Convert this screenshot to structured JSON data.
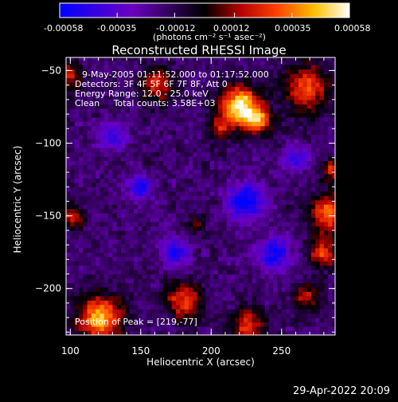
{
  "colorbar": {
    "tick_labels": [
      "-0.00058",
      "-0.00035",
      "-0.00012",
      "0.00012",
      "0.00035",
      "0.00058"
    ],
    "unit_label": "(photons cm⁻² s⁻¹ asec⁻²)"
  },
  "title": "Reconstructed RHESSI Image",
  "annotations": {
    "time_range": "9-May-2005 01:11:52.000 to 01:17:52.000",
    "detectors": "Detectors: 3F 4F 5F 6F 7F 8F, Att 0",
    "energy_range": "Energy Range: 12.0 - 25.0 keV",
    "method_counts": "Clean     Total counts: 3.58E+03",
    "peak_position": "Position of Peak = [219,-77]"
  },
  "footer_date": "29-Apr-2022 20:09",
  "chart_data": {
    "type": "heatmap",
    "title": "Reconstructed RHESSI Image",
    "xlabel": "Heliocentric X (arcsec)",
    "ylabel": "Heliocentric Y (arcsec)",
    "xlim": [
      97,
      288
    ],
    "ylim": [
      -232,
      -41
    ],
    "x_ticks": [
      100,
      150,
      200,
      250
    ],
    "y_ticks": [
      -50,
      -100,
      -150,
      -200
    ],
    "color_range": [
      -0.00058,
      0.00058
    ],
    "colorbar_ticks": [
      -0.00058,
      -0.00035,
      -0.00012,
      0.00012,
      0.00035,
      0.00058
    ],
    "colormap": [
      "#0000ff",
      "#6b00c0",
      "#000000",
      "#b00000",
      "#ff4000",
      "#ffc000",
      "#ffffff"
    ],
    "peak": [
      219,
      -77
    ],
    "sources": [
      {
        "x": 221,
        "y": -75,
        "sigma": 10,
        "amp": 0.00075
      },
      {
        "x": 234,
        "y": -85,
        "sigma": 6,
        "amp": 0.00045
      },
      {
        "x": 206,
        "y": -89,
        "sigma": 5,
        "amp": 0.0003
      },
      {
        "x": 268,
        "y": -62,
        "sigma": 11,
        "amp": 0.00045
      },
      {
        "x": 162,
        "y": -60,
        "sigma": 8,
        "amp": 0.0004
      },
      {
        "x": 98,
        "y": -53,
        "sigma": 7,
        "amp": 0.00035
      },
      {
        "x": 283,
        "y": -148,
        "sigma": 9,
        "amp": 0.0005
      },
      {
        "x": 279,
        "y": -176,
        "sigma": 7,
        "amp": 0.0004
      },
      {
        "x": 285,
        "y": -118,
        "sigma": 5,
        "amp": 0.00035
      },
      {
        "x": 121,
        "y": -220,
        "sigma": 11,
        "amp": 0.0006
      },
      {
        "x": 180,
        "y": -208,
        "sigma": 9,
        "amp": 0.0004
      },
      {
        "x": 226,
        "y": -225,
        "sigma": 8,
        "amp": 0.0004
      },
      {
        "x": 268,
        "y": -205,
        "sigma": 7,
        "amp": 0.0003
      },
      {
        "x": 102,
        "y": -150,
        "sigma": 6,
        "amp": 0.0003
      },
      {
        "x": 190,
        "y": -155,
        "sigma": 5,
        "amp": 0.0002
      },
      {
        "x": 150,
        "y": -130,
        "sigma": 6,
        "amp": -0.0004
      },
      {
        "x": 225,
        "y": -140,
        "sigma": 9,
        "amp": -0.00045
      },
      {
        "x": 245,
        "y": -175,
        "sigma": 8,
        "amp": -0.0004
      },
      {
        "x": 175,
        "y": -175,
        "sigma": 7,
        "amp": -0.00035
      },
      {
        "x": 130,
        "y": -95,
        "sigma": 7,
        "amp": -0.0003
      },
      {
        "x": 260,
        "y": -110,
        "sigma": 6,
        "amp": -0.0003
      }
    ],
    "background": -0.00016,
    "noise": 0.00013
  }
}
